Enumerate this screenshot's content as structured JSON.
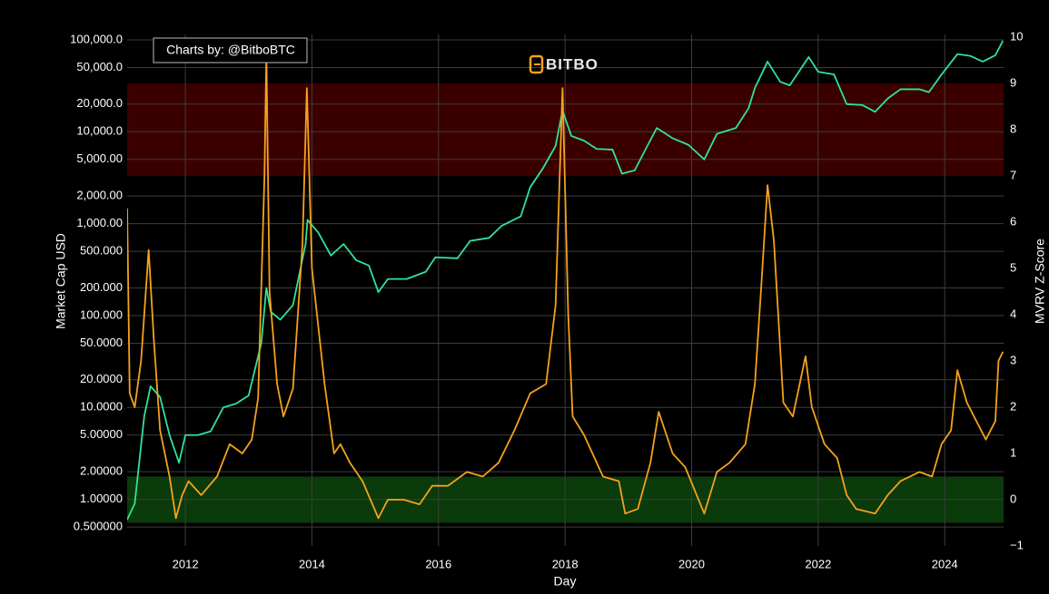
{
  "chart_data": {
    "type": "line",
    "annotation": "Charts by: @BitboBTC",
    "watermark": "BITBO",
    "xlabel": "Day",
    "ylabel": "Market Cap USD",
    "y2label": "MVRV Z-Score",
    "ylog": true,
    "grid": true,
    "xlim": [
      2011.08,
      2024.93
    ],
    "xticks": [
      2012,
      2014,
      2016,
      2018,
      2020,
      2022,
      2024
    ],
    "ylim": [
      0.311,
      107000
    ],
    "yticks": [
      {
        "value": 0.5,
        "label": "0.500000"
      },
      {
        "value": 1,
        "label": "1.00000"
      },
      {
        "value": 2,
        "label": "2.00000"
      },
      {
        "value": 5,
        "label": "5.00000"
      },
      {
        "value": 10,
        "label": "10.0000"
      },
      {
        "value": 20,
        "label": "20.0000"
      },
      {
        "value": 50,
        "label": "50.0000"
      },
      {
        "value": 100,
        "label": "100.000"
      },
      {
        "value": 200,
        "label": "200.000"
      },
      {
        "value": 500,
        "label": "500.000"
      },
      {
        "value": 1000,
        "label": "1,000.00"
      },
      {
        "value": 2000,
        "label": "2,000.00"
      },
      {
        "value": 5000,
        "label": "5,000.00"
      },
      {
        "value": 10000,
        "label": "10,000.0"
      },
      {
        "value": 20000,
        "label": "20,000.0"
      },
      {
        "value": 50000,
        "label": "50,000.0"
      },
      {
        "value": 100000,
        "label": "100,000.0"
      }
    ],
    "y2lim": [
      -1,
      10
    ],
    "y2ticks": [
      {
        "value": -1,
        "label": "−1"
      },
      0,
      1,
      2,
      3,
      4,
      5,
      6,
      7,
      8,
      9,
      10
    ],
    "bands": [
      {
        "from": 7,
        "to": 9,
        "color": "#3a0000",
        "axis": "y2"
      },
      {
        "from": -0.5,
        "to": 0.5,
        "color": "#0b3a0b",
        "axis": "y2"
      }
    ],
    "series": [
      {
        "color": "#2fe39a",
        "axis": "y",
        "x": [
          2011.08,
          2011.2,
          2011.35,
          2011.45,
          2011.6,
          2011.75,
          2011.9,
          2012.0,
          2012.2,
          2012.4,
          2012.6,
          2012.8,
          2013.0,
          2013.2,
          2013.28,
          2013.35,
          2013.5,
          2013.7,
          2013.9,
          2013.93,
          2014.1,
          2014.3,
          2014.5,
          2014.7,
          2014.9,
          2015.05,
          2015.2,
          2015.5,
          2015.8,
          2015.95,
          2016.3,
          2016.5,
          2016.8,
          2017.0,
          2017.3,
          2017.45,
          2017.65,
          2017.85,
          2017.96,
          2018.1,
          2018.3,
          2018.5,
          2018.75,
          2018.9,
          2019.1,
          2019.3,
          2019.45,
          2019.7,
          2019.95,
          2020.2,
          2020.4,
          2020.7,
          2020.9,
          2021.0,
          2021.2,
          2021.4,
          2021.55,
          2021.85,
          2022.0,
          2022.25,
          2022.45,
          2022.7,
          2022.9,
          2023.1,
          2023.3,
          2023.6,
          2023.75,
          2023.95,
          2024.2,
          2024.4,
          2024.6,
          2024.8,
          2024.92
        ],
        "values": [
          0.6,
          0.9,
          8,
          17,
          13,
          5,
          2.5,
          5,
          5,
          5.5,
          10,
          11,
          13.5,
          50,
          200,
          110,
          90,
          130,
          600,
          1100,
          800,
          450,
          600,
          400,
          350,
          180,
          250,
          250,
          300,
          430,
          420,
          650,
          700,
          950,
          1200,
          2500,
          4000,
          7000,
          17000,
          9000,
          8000,
          6500,
          6400,
          3500,
          3800,
          7000,
          11000,
          8500,
          7200,
          5000,
          9500,
          11000,
          18000,
          30000,
          58000,
          35000,
          32000,
          65000,
          45000,
          42000,
          20000,
          19500,
          16500,
          23000,
          29000,
          29000,
          27000,
          42000,
          70000,
          67000,
          58000,
          68000,
          98000
        ]
      },
      {
        "color": "#f5a21c",
        "axis": "y2",
        "x": [
          2011.08,
          2011.12,
          2011.2,
          2011.3,
          2011.42,
          2011.5,
          2011.6,
          2011.75,
          2011.85,
          2011.95,
          2012.05,
          2012.25,
          2012.5,
          2012.7,
          2012.9,
          2013.05,
          2013.15,
          2013.25,
          2013.28,
          2013.33,
          2013.45,
          2013.55,
          2013.7,
          2013.85,
          2013.92,
          2014.0,
          2014.12,
          2014.2,
          2014.35,
          2014.45,
          2014.6,
          2014.8,
          2015.05,
          2015.2,
          2015.45,
          2015.7,
          2015.9,
          2016.15,
          2016.45,
          2016.7,
          2016.95,
          2017.2,
          2017.45,
          2017.7,
          2017.85,
          2017.96,
          2018.05,
          2018.12,
          2018.3,
          2018.6,
          2018.85,
          2018.95,
          2019.15,
          2019.35,
          2019.48,
          2019.7,
          2019.9,
          2020.2,
          2020.4,
          2020.6,
          2020.85,
          2021.0,
          2021.1,
          2021.2,
          2021.3,
          2021.45,
          2021.6,
          2021.8,
          2021.9,
          2022.1,
          2022.3,
          2022.45,
          2022.6,
          2022.9,
          2023.1,
          2023.3,
          2023.6,
          2023.8,
          2023.95,
          2024.1,
          2024.2,
          2024.35,
          2024.5,
          2024.65,
          2024.8,
          2024.85,
          2024.92
        ],
        "values": [
          6.3,
          2.3,
          2.0,
          3.0,
          5.4,
          3.5,
          1.5,
          0.5,
          -0.4,
          0.1,
          0.4,
          0.1,
          0.5,
          1.2,
          1.0,
          1.3,
          2.2,
          7.0,
          9.6,
          4.5,
          2.5,
          1.8,
          2.4,
          5.5,
          8.9,
          5.0,
          3.5,
          2.5,
          1.0,
          1.2,
          0.8,
          0.4,
          -0.4,
          0.0,
          0.0,
          -0.1,
          0.3,
          0.3,
          0.6,
          0.5,
          0.8,
          1.5,
          2.3,
          2.5,
          4.2,
          8.9,
          4.0,
          1.8,
          1.4,
          0.5,
          0.4,
          -0.3,
          -0.2,
          0.8,
          1.9,
          1.0,
          0.7,
          -0.3,
          0.6,
          0.8,
          1.2,
          2.5,
          4.6,
          6.8,
          5.6,
          2.1,
          1.8,
          3.1,
          2.0,
          1.2,
          0.9,
          0.1,
          -0.2,
          -0.3,
          0.1,
          0.4,
          0.6,
          0.5,
          1.2,
          1.5,
          2.8,
          2.1,
          1.7,
          1.3,
          1.7,
          3.0,
          3.2
        ]
      }
    ]
  }
}
